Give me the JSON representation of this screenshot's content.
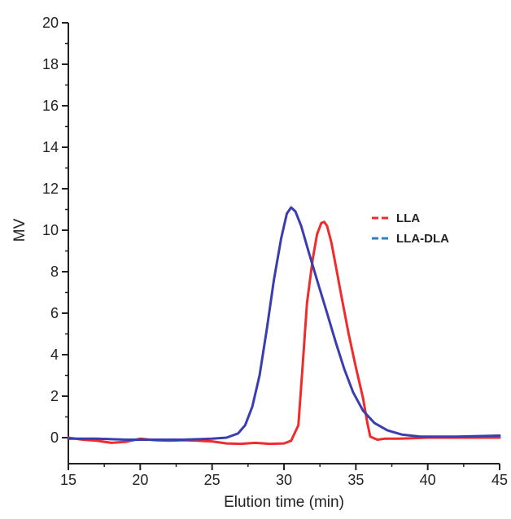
{
  "chart_data": {
    "type": "line",
    "title": "",
    "xlabel": "Elution time (min)",
    "ylabel": "MV",
    "xlim": [
      15,
      45
    ],
    "ylim": [
      0,
      20
    ],
    "xticks": [
      15,
      20,
      25,
      30,
      35,
      40,
      45
    ],
    "yticks": [
      0,
      2,
      4,
      6,
      8,
      10,
      12,
      14,
      16,
      18,
      20
    ],
    "grid": false,
    "legend_position": "right-middle",
    "series": [
      {
        "name": "LLA",
        "color": "#f02b2b",
        "legend_color": "#f02b2b",
        "points": [
          [
            15,
            0.0
          ],
          [
            16,
            -0.1
          ],
          [
            17,
            -0.15
          ],
          [
            18,
            -0.25
          ],
          [
            19,
            -0.2
          ],
          [
            20,
            -0.05
          ],
          [
            21,
            -0.12
          ],
          [
            22,
            -0.15
          ],
          [
            23,
            -0.12
          ],
          [
            24,
            -0.15
          ],
          [
            25,
            -0.18
          ],
          [
            26,
            -0.28
          ],
          [
            27,
            -0.3
          ],
          [
            28,
            -0.25
          ],
          [
            29,
            -0.3
          ],
          [
            30,
            -0.28
          ],
          [
            30.5,
            -0.15
          ],
          [
            31,
            0.6
          ],
          [
            31.3,
            3.5
          ],
          [
            31.6,
            6.5
          ],
          [
            32.0,
            8.6
          ],
          [
            32.3,
            9.8
          ],
          [
            32.6,
            10.35
          ],
          [
            32.8,
            10.4
          ],
          [
            33.0,
            10.2
          ],
          [
            33.3,
            9.4
          ],
          [
            33.6,
            8.3
          ],
          [
            34.0,
            6.8
          ],
          [
            34.5,
            5.0
          ],
          [
            35.0,
            3.4
          ],
          [
            35.5,
            1.9
          ],
          [
            35.8,
            0.7
          ],
          [
            36.0,
            0.05
          ],
          [
            36.5,
            -0.1
          ],
          [
            37,
            -0.05
          ],
          [
            38,
            -0.05
          ],
          [
            40,
            0.0
          ],
          [
            42,
            0.0
          ],
          [
            45,
            0.0
          ]
        ]
      },
      {
        "name": "LLA-DLA",
        "color": "#3a3db0",
        "legend_color": "#2f7fc1",
        "points": [
          [
            15,
            -0.05
          ],
          [
            17,
            -0.05
          ],
          [
            19,
            -0.1
          ],
          [
            21,
            -0.1
          ],
          [
            23,
            -0.1
          ],
          [
            25,
            -0.05
          ],
          [
            26,
            0.0
          ],
          [
            26.8,
            0.2
          ],
          [
            27.3,
            0.6
          ],
          [
            27.8,
            1.5
          ],
          [
            28.3,
            3.0
          ],
          [
            28.8,
            5.2
          ],
          [
            29.3,
            7.6
          ],
          [
            29.8,
            9.6
          ],
          [
            30.2,
            10.8
          ],
          [
            30.5,
            11.1
          ],
          [
            30.8,
            10.9
          ],
          [
            31.2,
            10.2
          ],
          [
            31.7,
            9.0
          ],
          [
            32.3,
            7.6
          ],
          [
            33.0,
            6.0
          ],
          [
            33.6,
            4.6
          ],
          [
            34.2,
            3.3
          ],
          [
            34.8,
            2.2
          ],
          [
            35.5,
            1.3
          ],
          [
            36.3,
            0.7
          ],
          [
            37.2,
            0.35
          ],
          [
            38.2,
            0.15
          ],
          [
            39.5,
            0.05
          ],
          [
            42,
            0.05
          ],
          [
            45,
            0.1
          ]
        ]
      }
    ]
  }
}
